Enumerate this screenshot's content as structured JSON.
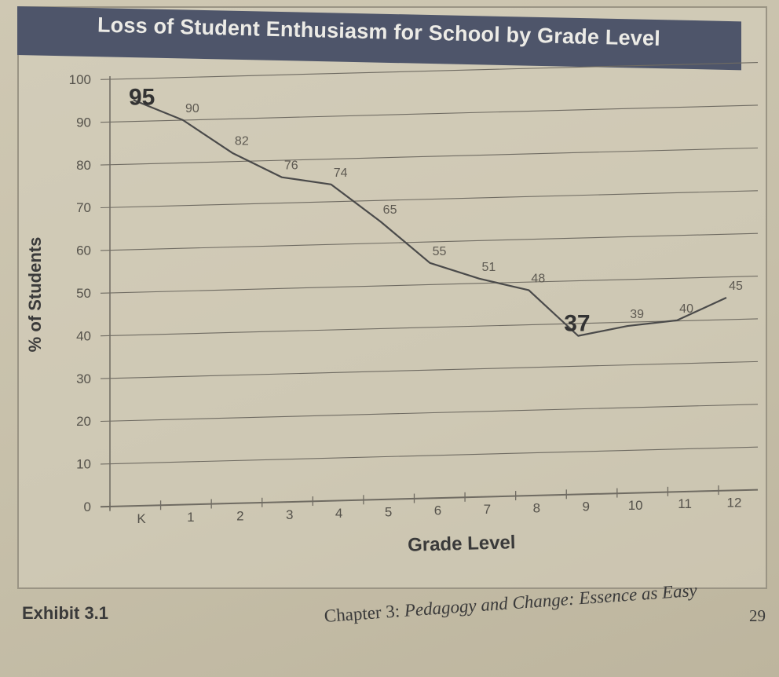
{
  "chart_data": {
    "type": "line",
    "title": "Loss of Student Enthusiasm for School by Grade Level",
    "xlabel": "Grade Level",
    "ylabel": "% of Students",
    "categories": [
      "K",
      "1",
      "2",
      "3",
      "4",
      "5",
      "6",
      "7",
      "8",
      "9",
      "10",
      "11",
      "12"
    ],
    "series": [
      {
        "values": [
          95,
          90,
          82,
          76,
          74,
          65,
          55,
          51,
          48,
          37,
          39,
          40,
          45
        ]
      }
    ],
    "data_labels": [
      "95",
      "90",
      "82",
      "76",
      "74",
      "65",
      "55",
      "51",
      "48",
      "37",
      "39",
      "40",
      "45"
    ],
    "emphasized_labels": [
      0,
      9
    ],
    "ylim": [
      0,
      100
    ],
    "yticks": [
      0,
      10,
      20,
      30,
      40,
      50,
      60,
      70,
      80,
      90,
      100
    ],
    "grid": true,
    "legend": "none"
  },
  "caption": {
    "exhibit": "Exhibit 3.1",
    "chapter_prefix": "Chapter 3: ",
    "chapter_title": "Pedagogy and Change: Essence as Easy",
    "page_number": "29"
  },
  "colors": {
    "title_bar": "#4e556a",
    "title_text": "#ecebe6",
    "line": "#4a4a4a",
    "grid": "#6f6b62",
    "text": "#3a3a3a"
  }
}
